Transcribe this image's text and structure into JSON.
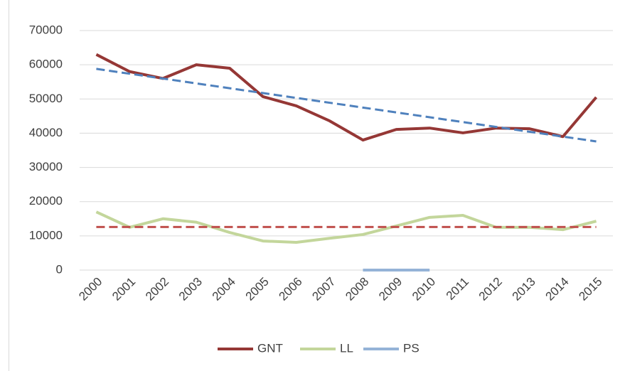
{
  "chart_data": {
    "type": "line",
    "categories": [
      "2000",
      "2001",
      "2002",
      "2003",
      "2004",
      "2005",
      "2006",
      "2007",
      "2008",
      "2009",
      "2010",
      "2011",
      "2012",
      "2013",
      "2014",
      "2015"
    ],
    "series": [
      {
        "name": "GNT",
        "color": "#953735",
        "values": [
          63000,
          58000,
          56000,
          60000,
          59000,
          50700,
          48000,
          43600,
          38000,
          41100,
          41500,
          40100,
          41500,
          41300,
          39000,
          50500
        ]
      },
      {
        "name": "LL",
        "color": "#c3d69b",
        "values": [
          17000,
          12500,
          15000,
          14000,
          11000,
          8500,
          8100,
          9300,
          10400,
          12900,
          15400,
          16000,
          12500,
          12500,
          11800,
          14300
        ]
      },
      {
        "name": "PS",
        "color": "#95b3d7",
        "values": [
          null,
          null,
          null,
          null,
          null,
          null,
          null,
          null,
          0,
          0,
          0,
          null,
          null,
          null,
          null,
          null
        ]
      }
    ],
    "trendlines": [
      {
        "color": "#4f81bd",
        "values": [
          58800,
          37600
        ]
      },
      {
        "color": "#c0504d",
        "values": [
          12600,
          12600
        ]
      }
    ],
    "ylim": [
      0,
      70000
    ],
    "yticks": [
      0,
      10000,
      20000,
      30000,
      40000,
      50000,
      60000,
      70000
    ],
    "grid": true,
    "legend": "bottom"
  }
}
